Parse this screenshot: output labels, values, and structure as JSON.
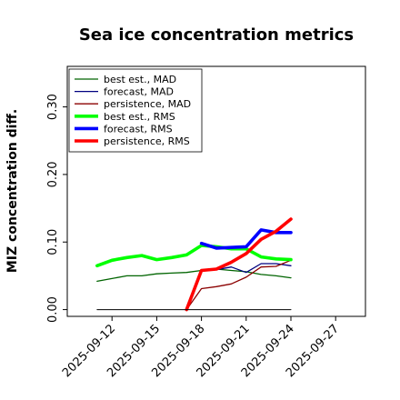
{
  "chart_data": {
    "type": "line",
    "title": "Sea ice concentration metrics",
    "xlabel": "",
    "ylabel": "MIZ concentration diff.",
    "ylim": [
      -0.01,
      0.36
    ],
    "yticks": [
      0.0,
      0.1,
      0.2,
      0.3
    ],
    "ytick_labels": [
      "0.00",
      "0.10",
      "0.20",
      "0.30"
    ],
    "xlim": [
      "2025-09-09",
      "2025-09-29"
    ],
    "xticks": [
      "2025-09-12",
      "2025-09-15",
      "2025-09-18",
      "2025-09-21",
      "2025-09-24",
      "2025-09-27"
    ],
    "highlighted_xtick": "2025-09-18",
    "highlight_color": "#228b22",
    "grid": false,
    "legend_position": "top-left",
    "series": [
      {
        "name": "best est., MAD",
        "color": "#006400",
        "width": "thin",
        "x": [
          "2025-09-11",
          "2025-09-12",
          "2025-09-13",
          "2025-09-14",
          "2025-09-15",
          "2025-09-16",
          "2025-09-17",
          "2025-09-18",
          "2025-09-19",
          "2025-09-20",
          "2025-09-21",
          "2025-09-22",
          "2025-09-23",
          "2025-09-24"
        ],
        "values": [
          0.042,
          0.046,
          0.05,
          0.05,
          0.053,
          0.054,
          0.055,
          0.058,
          0.06,
          0.058,
          0.056,
          0.052,
          0.05,
          0.047
        ]
      },
      {
        "name": "forecast,  MAD",
        "color": "#000080",
        "width": "thin",
        "x": [
          "2025-09-18",
          "2025-09-19",
          "2025-09-20",
          "2025-09-21",
          "2025-09-22",
          "2025-09-23",
          "2025-09-24"
        ],
        "values": [
          0.057,
          0.059,
          0.063,
          0.055,
          0.068,
          0.068,
          0.065
        ]
      },
      {
        "name": "persistence, MAD",
        "color": "#8b0000",
        "width": "thin",
        "x": [
          "2025-09-17",
          "2025-09-18",
          "2025-09-19",
          "2025-09-20",
          "2025-09-21",
          "2025-09-22",
          "2025-09-23",
          "2025-09-24"
        ],
        "values": [
          0.0,
          0.031,
          0.034,
          0.038,
          0.048,
          0.063,
          0.064,
          0.073
        ]
      },
      {
        "name": "best est., RMS",
        "color": "#00ff00",
        "width": "thick",
        "x": [
          "2025-09-11",
          "2025-09-12",
          "2025-09-13",
          "2025-09-14",
          "2025-09-15",
          "2025-09-16",
          "2025-09-17",
          "2025-09-18",
          "2025-09-19",
          "2025-09-20",
          "2025-09-21",
          "2025-09-22",
          "2025-09-23",
          "2025-09-24"
        ],
        "values": [
          0.065,
          0.073,
          0.077,
          0.08,
          0.074,
          0.077,
          0.081,
          0.095,
          0.093,
          0.09,
          0.09,
          0.078,
          0.075,
          0.074
        ]
      },
      {
        "name": "forecast,  RMS",
        "color": "#0000ff",
        "width": "thick",
        "x": [
          "2025-09-18",
          "2025-09-19",
          "2025-09-20",
          "2025-09-21",
          "2025-09-22",
          "2025-09-23",
          "2025-09-24"
        ],
        "values": [
          0.098,
          0.091,
          0.092,
          0.093,
          0.118,
          0.114,
          0.114
        ]
      },
      {
        "name": "persistence, RMS",
        "color": "#ff0000",
        "width": "thick",
        "x": [
          "2025-09-17",
          "2025-09-18",
          "2025-09-19",
          "2025-09-20",
          "2025-09-21",
          "2025-09-22",
          "2025-09-23",
          "2025-09-24"
        ],
        "values": [
          0.0,
          0.058,
          0.06,
          0.07,
          0.083,
          0.104,
          0.116,
          0.134
        ]
      },
      {
        "name": "",
        "color": "#000000",
        "width": "hairline",
        "x": [
          "2025-09-11",
          "2025-09-24"
        ],
        "values": [
          0.0,
          0.0
        ]
      }
    ]
  }
}
